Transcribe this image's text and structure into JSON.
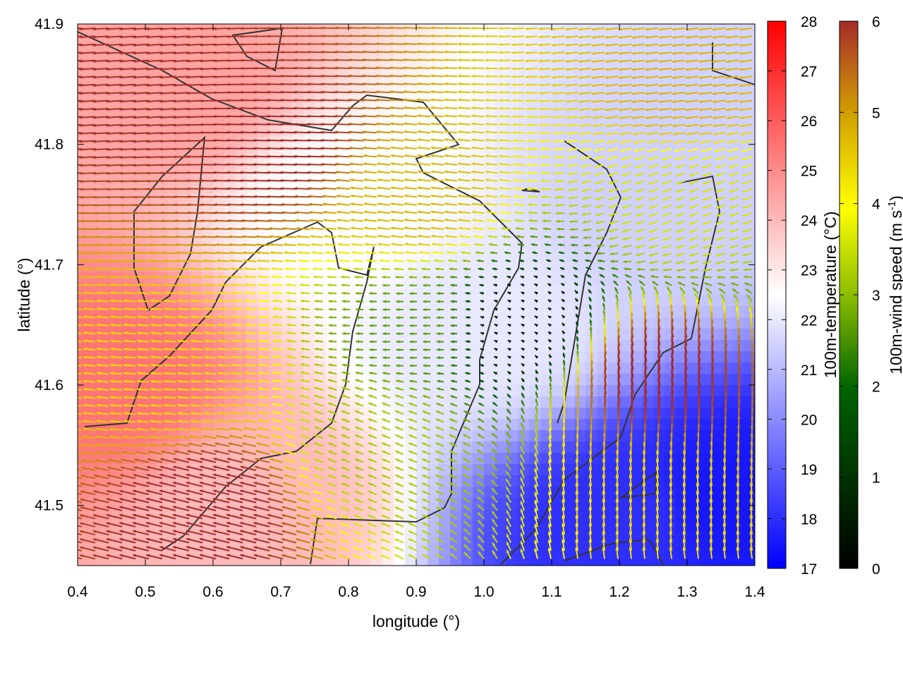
{
  "chart_data": {
    "type": "vector-field",
    "title": "",
    "xlabel": "longitude (°)",
    "ylabel": "latitude (°)",
    "xlim": [
      0.4,
      1.4
    ],
    "ylim": [
      41.45,
      41.9
    ],
    "xticks": [
      "0.4",
      "0.5",
      "0.6",
      "0.7",
      "0.8",
      "0.9",
      "1.0",
      "1.1",
      "1.2",
      "1.3",
      "1.4"
    ],
    "yticks": [
      "41.5",
      "41.6",
      "41.7",
      "41.8",
      "41.9"
    ],
    "grid": false,
    "temperature_colorbar": {
      "label": "100m-temperature (°C)",
      "range": [
        17,
        28
      ],
      "ticks": [
        "17",
        "18",
        "19",
        "20",
        "21",
        "22",
        "23",
        "24",
        "25",
        "26",
        "27",
        "28"
      ],
      "colors": [
        "#0000ff",
        "#ffffff",
        "#ff0000"
      ]
    },
    "wind_colorbar": {
      "label_main": "100m-wind speed (m s",
      "label_sup": "-1",
      "label_end": ")",
      "range": [
        0,
        6
      ],
      "ticks": [
        "0",
        "1",
        "2",
        "3",
        "4",
        "5",
        "6"
      ],
      "colors": [
        "#000000",
        "#006400",
        "#8cbe00",
        "#ffff00",
        "#d2a000",
        "#a52a2a"
      ]
    },
    "vector_field_sample": [
      {
        "lon": 0.5,
        "lat": 41.85,
        "u": -5.9,
        "v": -0.4
      },
      {
        "lon": 0.7,
        "lat": 41.8,
        "u": -6.0,
        "v": 0.2
      },
      {
        "lon": 0.9,
        "lat": 41.75,
        "u": -4.5,
        "v": 0.5
      },
      {
        "lon": 0.9,
        "lat": 41.65,
        "u": -2.0,
        "v": 0.0
      },
      {
        "lon": 1.05,
        "lat": 41.65,
        "u": -0.2,
        "v": 0.1
      },
      {
        "lon": 0.55,
        "lat": 41.6,
        "u": -4.0,
        "v": 0.3
      },
      {
        "lon": 1.25,
        "lat": 41.6,
        "u": 0.5,
        "v": 6.0
      },
      {
        "lon": 1.25,
        "lat": 41.5,
        "u": -0.5,
        "v": 4.0
      },
      {
        "lon": 0.6,
        "lat": 41.5,
        "u": -6.0,
        "v": 1.5
      },
      {
        "lon": 1.3,
        "lat": 41.85,
        "u": -4.5,
        "v": -0.5
      },
      {
        "lon": 1.3,
        "lat": 41.75,
        "u": -3.0,
        "v": -1.0
      },
      {
        "lon": 0.85,
        "lat": 41.55,
        "u": -2.5,
        "v": 1.0
      }
    ],
    "temperature_sample": [
      {
        "lon": 0.45,
        "lat": 41.6,
        "value": 25.5
      },
      {
        "lon": 0.55,
        "lat": 41.85,
        "value": 24.5
      },
      {
        "lon": 0.8,
        "lat": 41.75,
        "value": 22.5
      },
      {
        "lon": 1.0,
        "lat": 41.65,
        "value": 22.0
      },
      {
        "lon": 1.25,
        "lat": 41.75,
        "value": 21.5
      },
      {
        "lon": 1.2,
        "lat": 41.48,
        "value": 18.0
      },
      {
        "lon": 1.38,
        "lat": 41.5,
        "value": 17.5
      },
      {
        "lon": 0.65,
        "lat": 41.5,
        "value": 24.0
      }
    ]
  }
}
